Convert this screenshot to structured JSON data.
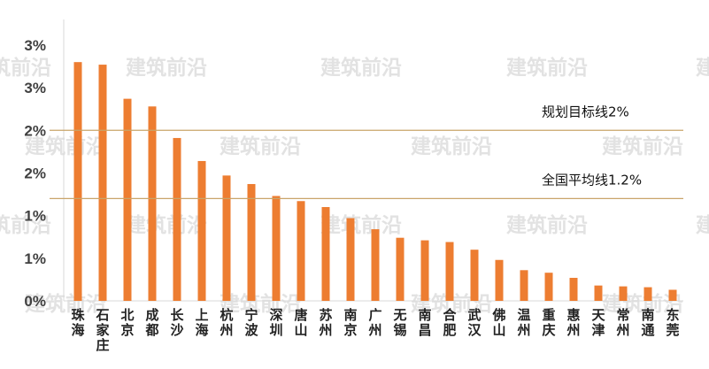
{
  "chart_data": {
    "type": "bar",
    "title": "",
    "xlabel": "",
    "ylabel": "",
    "ylim": [
      0,
      3.3
    ],
    "grid": false,
    "y_tick_values": [
      0,
      0.5,
      1.0,
      1.5,
      2.0,
      2.5,
      3.0
    ],
    "y_tick_labels": [
      "0%",
      "1%",
      "1%",
      "2%",
      "2%",
      "3%",
      "3%"
    ],
    "categories": [
      "珠海",
      "石家庄",
      "北京",
      "成都",
      "长沙",
      "上海",
      "杭州",
      "宁波",
      "深圳",
      "唐山",
      "苏州",
      "南京",
      "广州",
      "无锡",
      "南昌",
      "合肥",
      "武汉",
      "佛山",
      "温州",
      "重庆",
      "惠州",
      "天津",
      "常州",
      "南通",
      "东莞"
    ],
    "values": [
      2.8,
      2.77,
      2.37,
      2.28,
      1.91,
      1.64,
      1.47,
      1.37,
      1.23,
      1.17,
      1.1,
      0.97,
      0.84,
      0.74,
      0.71,
      0.69,
      0.6,
      0.48,
      0.36,
      0.33,
      0.27,
      0.18,
      0.17,
      0.16,
      0.13
    ],
    "bar_color": "#ed7d31",
    "reference_lines": [
      {
        "label": "规划目标线2%",
        "value": 2.0,
        "color": "#c9a46a"
      },
      {
        "label": "全国平均线1.2%",
        "value": 1.2,
        "color": "#c9a46a"
      }
    ],
    "watermark": "建筑前沿"
  }
}
